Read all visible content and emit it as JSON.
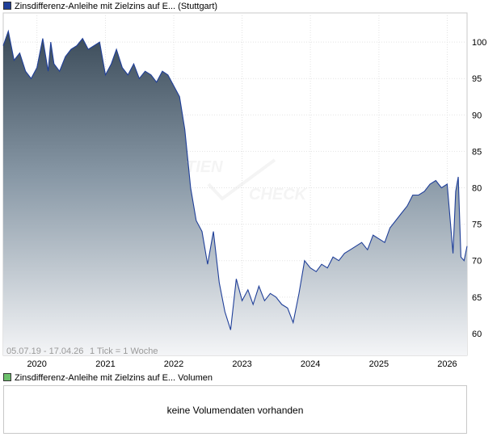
{
  "legend": {
    "price_label": "Zinsdifferenz-Anleihe mit Zielzins auf E... (Stuttgart)",
    "price_color": "#1f3f99",
    "volume_label": "Zinsdifferenz-Anleihe mit Zielzins auf E... Volumen",
    "volume_color": "#6cc06c"
  },
  "range_text": "05.07.19 - 17.04.26",
  "tick_text": "1 Tick = 1 Woche",
  "watermark": {
    "line1": "TIEN",
    "line2": "CHECK"
  },
  "volume": {
    "message": "keine Volumendaten vorhanden"
  },
  "chart_data": {
    "type": "area",
    "ylim": [
      57,
      104
    ],
    "y_ticks": [
      60,
      65,
      70,
      75,
      80,
      85,
      90,
      95,
      100
    ],
    "x_ticks": [
      "2020",
      "2021",
      "2022",
      "2023",
      "2024",
      "2025",
      "2026"
    ],
    "x_tick_dates": [
      "2020-01-01",
      "2021-01-01",
      "2022-01-01",
      "2023-01-01",
      "2024-01-01",
      "2025-01-01",
      "2026-01-01"
    ],
    "xlim": [
      "2019-07-05",
      "2026-04-17"
    ],
    "grid": true,
    "series": [
      {
        "x": [
          "2019-07-05",
          "2019-08-01",
          "2019-09-01",
          "2019-10-01",
          "2019-11-01",
          "2019-12-01",
          "2020-01-01",
          "2020-02-01",
          "2020-03-01",
          "2020-03-15",
          "2020-04-01",
          "2020-05-01",
          "2020-06-01",
          "2020-07-01",
          "2020-08-01",
          "2020-09-01",
          "2020-10-01",
          "2020-11-01",
          "2020-12-01",
          "2021-01-01",
          "2021-02-01",
          "2021-03-01",
          "2021-04-01",
          "2021-05-01",
          "2021-06-01",
          "2021-07-01",
          "2021-08-01",
          "2021-09-01",
          "2021-10-01",
          "2021-11-01",
          "2021-12-01",
          "2022-01-01",
          "2022-02-01",
          "2022-03-01",
          "2022-04-01",
          "2022-05-01",
          "2022-06-01",
          "2022-07-01",
          "2022-08-01",
          "2022-09-01",
          "2022-10-01",
          "2022-11-01",
          "2022-12-01",
          "2023-01-01",
          "2023-02-01",
          "2023-03-01",
          "2023-04-01",
          "2023-05-01",
          "2023-06-01",
          "2023-07-01",
          "2023-08-01",
          "2023-09-01",
          "2023-10-01",
          "2023-11-01",
          "2023-12-01",
          "2024-01-01",
          "2024-02-01",
          "2024-03-01",
          "2024-04-01",
          "2024-05-01",
          "2024-06-01",
          "2024-07-01",
          "2024-08-01",
          "2024-09-01",
          "2024-10-01",
          "2024-11-01",
          "2024-12-01",
          "2025-01-01",
          "2025-02-01",
          "2025-03-01",
          "2025-04-01",
          "2025-05-01",
          "2025-06-01",
          "2025-07-01",
          "2025-08-01",
          "2025-09-01",
          "2025-10-01",
          "2025-11-01",
          "2025-12-01",
          "2026-01-01",
          "2026-02-01",
          "2026-02-15",
          "2026-03-01",
          "2026-03-15",
          "2026-04-01",
          "2026-04-17"
        ],
        "values": [
          99.5,
          101.5,
          97.5,
          98.5,
          96.0,
          95.0,
          96.5,
          100.5,
          96.0,
          100.0,
          97.0,
          96.0,
          98.0,
          99.0,
          99.5,
          100.5,
          99.0,
          99.5,
          100.0,
          95.5,
          97.0,
          99.0,
          96.5,
          95.5,
          97.0,
          95.0,
          96.0,
          95.5,
          94.5,
          96.0,
          95.5,
          94.0,
          92.5,
          88.0,
          80.0,
          75.5,
          74.0,
          69.5,
          74.0,
          67.0,
          63.0,
          60.5,
          67.5,
          64.5,
          66.0,
          64.0,
          66.5,
          64.5,
          65.5,
          65.0,
          64.0,
          63.5,
          61.5,
          65.5,
          70.0,
          69.0,
          68.5,
          69.5,
          69.0,
          70.5,
          70.0,
          71.0,
          71.5,
          72.0,
          72.5,
          71.5,
          73.5,
          73.0,
          72.5,
          74.5,
          75.5,
          76.5,
          77.5,
          79.0,
          79.0,
          79.5,
          80.5,
          81.0,
          80.0,
          80.5,
          71.0,
          79.5,
          81.5,
          70.5,
          70.0,
          72.0
        ]
      }
    ]
  }
}
